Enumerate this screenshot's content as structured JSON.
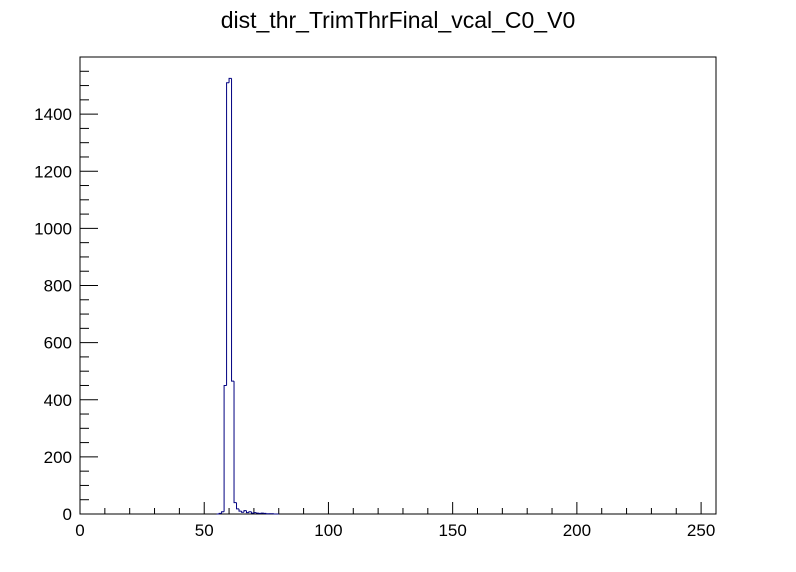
{
  "chart_data": {
    "type": "histogram",
    "title": "dist_thr_TrimThrFinal_vcal_C0_V0",
    "bins": [
      55,
      56,
      57,
      58,
      59,
      60,
      61,
      62,
      63,
      64,
      65,
      66,
      67,
      68,
      69,
      70,
      71,
      72,
      73,
      74,
      75,
      76,
      77,
      78,
      79,
      80
    ],
    "counts": [
      0,
      2,
      8,
      450,
      1510,
      1525,
      465,
      40,
      18,
      10,
      6,
      12,
      5,
      8,
      3,
      5,
      3,
      2,
      3,
      2,
      1,
      1,
      1,
      0,
      0
    ],
    "color": "#000080",
    "xlim": [
      0,
      256
    ],
    "xticks": [
      0,
      50,
      100,
      150,
      200,
      250
    ],
    "ylim": [
      0,
      1600
    ],
    "yticks": [
      0,
      200,
      400,
      600,
      800,
      1000,
      1200,
      1400
    ]
  }
}
